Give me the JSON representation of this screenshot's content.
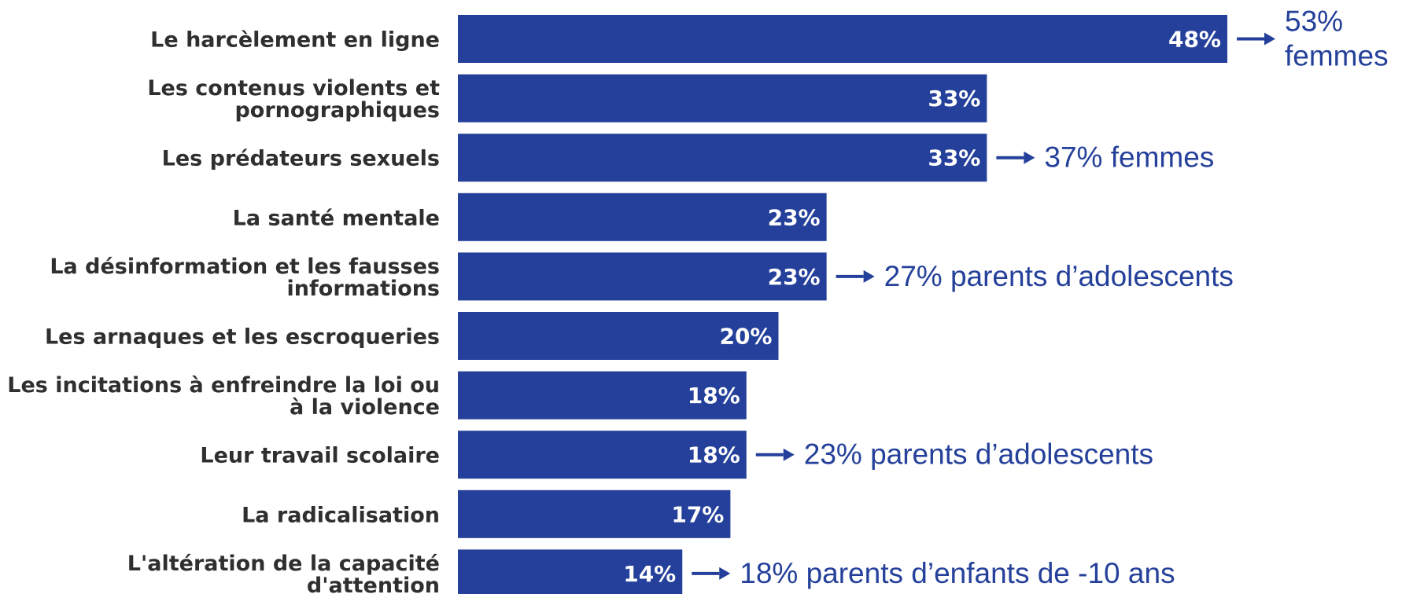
{
  "chart_data": {
    "type": "bar",
    "orientation": "horizontal",
    "categories": [
      [
        "Le harcèlement en ligne"
      ],
      [
        "Les contenus violents et",
        "pornographiques"
      ],
      [
        "Les prédateurs sexuels"
      ],
      [
        "La santé mentale"
      ],
      [
        "La désinformation et les fausses",
        "informations"
      ],
      [
        "Les arnaques et les escroqueries"
      ],
      [
        "Les incitations à enfreindre la loi ou",
        "à la violence"
      ],
      [
        "Leur travail scolaire"
      ],
      [
        "La radicalisation"
      ],
      [
        "L'altération de la capacité",
        "d'attention"
      ]
    ],
    "values": [
      48,
      33,
      33,
      23,
      23,
      20,
      18,
      18,
      17,
      14
    ],
    "value_labels": [
      "48%",
      "33%",
      "33%",
      "23%",
      "23%",
      "20%",
      "18%",
      "18%",
      "17%",
      "14%"
    ],
    "annotations": [
      {
        "bar": 0,
        "lines": [
          "53%",
          "femmes"
        ]
      },
      {
        "bar": 2,
        "lines": [
          "37% femmes"
        ]
      },
      {
        "bar": 4,
        "lines": [
          "27% parents d’adolescents"
        ]
      },
      {
        "bar": 7,
        "lines": [
          "23% parents d’adolescents"
        ]
      },
      {
        "bar": 9,
        "lines": [
          "18% parents d’enfants de -10 ans"
        ]
      }
    ],
    "title": "",
    "xlabel": "",
    "ylabel": "",
    "xlim": [
      0,
      48
    ],
    "grid": false,
    "legend": "none",
    "colors": {
      "bar": "#24409a",
      "bar_label": "#ffffff",
      "category_text": "#2f2f2f",
      "annotation": "#24409a"
    }
  }
}
